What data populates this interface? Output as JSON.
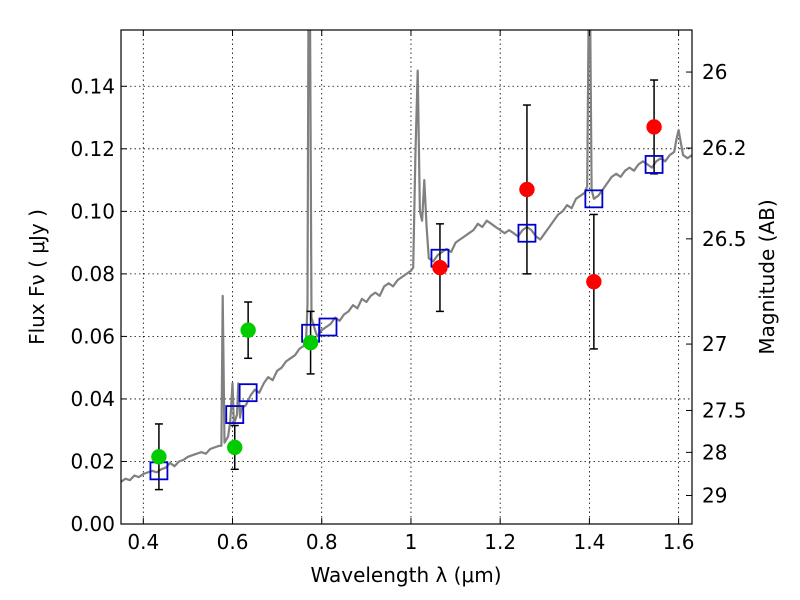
{
  "chart_data": {
    "type": "scatter",
    "xlabel": "Wavelength  λ (μm)",
    "ylabel": "Flux  Fν  ( μJy )",
    "y2label": "Magnitude (AB)",
    "xlim": [
      0.35,
      1.63
    ],
    "ylim": [
      0.0,
      0.158
    ],
    "grid": true,
    "x_ticks": [
      {
        "value": 0.4,
        "label": "0.4"
      },
      {
        "value": 0.6,
        "label": "0.6"
      },
      {
        "value": 0.8,
        "label": "0.8"
      },
      {
        "value": 1.0,
        "label": "1"
      },
      {
        "value": 1.2,
        "label": "1.2"
      },
      {
        "value": 1.4,
        "label": "1.4"
      },
      {
        "value": 1.6,
        "label": "1.6"
      }
    ],
    "y_ticks": [
      {
        "value": 0.0,
        "label": "0.00"
      },
      {
        "value": 0.02,
        "label": "0.02"
      },
      {
        "value": 0.04,
        "label": "0.04"
      },
      {
        "value": 0.06,
        "label": "0.06"
      },
      {
        "value": 0.08,
        "label": "0.08"
      },
      {
        "value": 0.1,
        "label": "0.10"
      },
      {
        "value": 0.12,
        "label": "0.12"
      },
      {
        "value": 0.14,
        "label": "0.14"
      }
    ],
    "y2_ticks": [
      {
        "label": "26",
        "mag": 26.0
      },
      {
        "label": "26.2",
        "mag": 26.2
      },
      {
        "label": "26.5",
        "mag": 26.5
      },
      {
        "label": "27",
        "mag": 27.0
      },
      {
        "label": "27.5",
        "mag": 27.5
      },
      {
        "label": "28",
        "mag": 28.0
      },
      {
        "label": "29",
        "mag": 29.0
      }
    ],
    "series": [
      {
        "marker": "square-open",
        "color": "#0000cc",
        "points": [
          {
            "x": 0.435,
            "y": 0.017
          },
          {
            "x": 0.605,
            "y": 0.035
          },
          {
            "x": 0.635,
            "y": 0.042
          },
          {
            "x": 0.775,
            "y": 0.061
          },
          {
            "x": 0.814,
            "y": 0.063
          },
          {
            "x": 1.065,
            "y": 0.085
          },
          {
            "x": 1.26,
            "y": 0.093
          },
          {
            "x": 1.41,
            "y": 0.104
          },
          {
            "x": 1.545,
            "y": 0.115
          }
        ]
      },
      {
        "marker": "circle-filled",
        "color": "#00cc00",
        "points": [
          {
            "x": 0.435,
            "y": 0.0215,
            "err_lo": 0.0105,
            "err_hi": 0.0105
          },
          {
            "x": 0.605,
            "y": 0.0245,
            "err_lo": 0.007,
            "err_hi": 0.007
          },
          {
            "x": 0.635,
            "y": 0.062,
            "err_lo": 0.009,
            "err_hi": 0.009
          },
          {
            "x": 0.775,
            "y": 0.058,
            "err_lo": 0.01,
            "err_hi": 0.01
          }
        ]
      },
      {
        "marker": "circle-filled",
        "color": "#ff0000",
        "points": [
          {
            "x": 1.065,
            "y": 0.082,
            "err_lo": 0.014,
            "err_hi": 0.014
          },
          {
            "x": 1.26,
            "y": 0.107,
            "err_lo": 0.027,
            "err_hi": 0.027
          },
          {
            "x": 1.41,
            "y": 0.0775,
            "err_lo": 0.0215,
            "err_hi": 0.0215
          },
          {
            "x": 1.545,
            "y": 0.127,
            "err_lo": 0.015,
            "err_hi": 0.015
          }
        ]
      }
    ],
    "model_spectrum": {
      "color": "#808080",
      "points": [
        [
          0.35,
          0.0135
        ],
        [
          0.36,
          0.0145
        ],
        [
          0.37,
          0.014
        ],
        [
          0.38,
          0.0155
        ],
        [
          0.39,
          0.015
        ],
        [
          0.4,
          0.016
        ],
        [
          0.41,
          0.0165
        ],
        [
          0.42,
          0.017
        ],
        [
          0.43,
          0.0165
        ],
        [
          0.44,
          0.0175
        ],
        [
          0.45,
          0.018
        ],
        [
          0.46,
          0.0195
        ],
        [
          0.47,
          0.0185
        ],
        [
          0.48,
          0.02
        ],
        [
          0.49,
          0.0205
        ],
        [
          0.5,
          0.0215
        ],
        [
          0.51,
          0.022
        ],
        [
          0.52,
          0.0225
        ],
        [
          0.53,
          0.023
        ],
        [
          0.54,
          0.0225
        ],
        [
          0.55,
          0.024
        ],
        [
          0.56,
          0.0245
        ],
        [
          0.57,
          0.025
        ],
        [
          0.575,
          0.025
        ],
        [
          0.578,
          0.073
        ],
        [
          0.582,
          0.026
        ],
        [
          0.59,
          0.028
        ],
        [
          0.595,
          0.033
        ],
        [
          0.6,
          0.045
        ],
        [
          0.603,
          0.032
        ],
        [
          0.61,
          0.035
        ],
        [
          0.613,
          0.045
        ],
        [
          0.617,
          0.034
        ],
        [
          0.62,
          0.037
        ],
        [
          0.63,
          0.038
        ],
        [
          0.64,
          0.041
        ],
        [
          0.65,
          0.043
        ],
        [
          0.66,
          0.042
        ],
        [
          0.67,
          0.045
        ],
        [
          0.68,
          0.047
        ],
        [
          0.69,
          0.046
        ],
        [
          0.7,
          0.049
        ],
        [
          0.71,
          0.05
        ],
        [
          0.72,
          0.052
        ],
        [
          0.73,
          0.053
        ],
        [
          0.74,
          0.054
        ],
        [
          0.75,
          0.056
        ],
        [
          0.76,
          0.057
        ],
        [
          0.765,
          0.059
        ],
        [
          0.768,
          0.07
        ],
        [
          0.77,
          0.158
        ],
        [
          0.774,
          0.158
        ],
        [
          0.777,
          0.066
        ],
        [
          0.785,
          0.062
        ],
        [
          0.79,
          0.06
        ],
        [
          0.8,
          0.062
        ],
        [
          0.81,
          0.063
        ],
        [
          0.82,
          0.064
        ],
        [
          0.83,
          0.066
        ],
        [
          0.84,
          0.065
        ],
        [
          0.85,
          0.067
        ],
        [
          0.86,
          0.068
        ],
        [
          0.87,
          0.07
        ],
        [
          0.88,
          0.069
        ],
        [
          0.89,
          0.072
        ],
        [
          0.9,
          0.071
        ],
        [
          0.91,
          0.073
        ],
        [
          0.92,
          0.074
        ],
        [
          0.93,
          0.073
        ],
        [
          0.94,
          0.076
        ],
        [
          0.95,
          0.077
        ],
        [
          0.96,
          0.076
        ],
        [
          0.97,
          0.078
        ],
        [
          0.98,
          0.079
        ],
        [
          0.99,
          0.08
        ],
        [
          1.0,
          0.081
        ],
        [
          1.005,
          0.082
        ],
        [
          1.01,
          0.118
        ],
        [
          1.015,
          0.145
        ],
        [
          1.02,
          0.1
        ],
        [
          1.025,
          0.097
        ],
        [
          1.03,
          0.11
        ],
        [
          1.035,
          0.095
        ],
        [
          1.04,
          0.085
        ],
        [
          1.05,
          0.084
        ],
        [
          1.06,
          0.086
        ],
        [
          1.07,
          0.087
        ],
        [
          1.08,
          0.088
        ],
        [
          1.09,
          0.087
        ],
        [
          1.1,
          0.09
        ],
        [
          1.11,
          0.091
        ],
        [
          1.12,
          0.092
        ],
        [
          1.13,
          0.093
        ],
        [
          1.14,
          0.094
        ],
        [
          1.15,
          0.096
        ],
        [
          1.16,
          0.095
        ],
        [
          1.17,
          0.097
        ],
        [
          1.18,
          0.096
        ],
        [
          1.19,
          0.095
        ],
        [
          1.2,
          0.094
        ],
        [
          1.21,
          0.093
        ],
        [
          1.22,
          0.094
        ],
        [
          1.23,
          0.093
        ],
        [
          1.24,
          0.092
        ],
        [
          1.25,
          0.094
        ],
        [
          1.26,
          0.095
        ],
        [
          1.27,
          0.094
        ],
        [
          1.28,
          0.092
        ],
        [
          1.29,
          0.091
        ],
        [
          1.3,
          0.093
        ],
        [
          1.31,
          0.095
        ],
        [
          1.32,
          0.097
        ],
        [
          1.33,
          0.099
        ],
        [
          1.34,
          0.1
        ],
        [
          1.35,
          0.102
        ],
        [
          1.36,
          0.101
        ],
        [
          1.37,
          0.104
        ],
        [
          1.38,
          0.105
        ],
        [
          1.39,
          0.106
        ],
        [
          1.395,
          0.108
        ],
        [
          1.398,
          0.158
        ],
        [
          1.402,
          0.158
        ],
        [
          1.405,
          0.107
        ],
        [
          1.41,
          0.104
        ],
        [
          1.42,
          0.105
        ],
        [
          1.43,
          0.107
        ],
        [
          1.44,
          0.109
        ],
        [
          1.45,
          0.111
        ],
        [
          1.46,
          0.112
        ],
        [
          1.47,
          0.111
        ],
        [
          1.48,
          0.113
        ],
        [
          1.49,
          0.114
        ],
        [
          1.5,
          0.113
        ],
        [
          1.51,
          0.115
        ],
        [
          1.52,
          0.116
        ],
        [
          1.53,
          0.115
        ],
        [
          1.54,
          0.114
        ],
        [
          1.55,
          0.116
        ],
        [
          1.56,
          0.117
        ],
        [
          1.57,
          0.116
        ],
        [
          1.58,
          0.118
        ],
        [
          1.59,
          0.119
        ],
        [
          1.595,
          0.123
        ],
        [
          1.6,
          0.126
        ],
        [
          1.605,
          0.122
        ],
        [
          1.61,
          0.118
        ],
        [
          1.62,
          0.117
        ],
        [
          1.63,
          0.118
        ]
      ]
    }
  }
}
